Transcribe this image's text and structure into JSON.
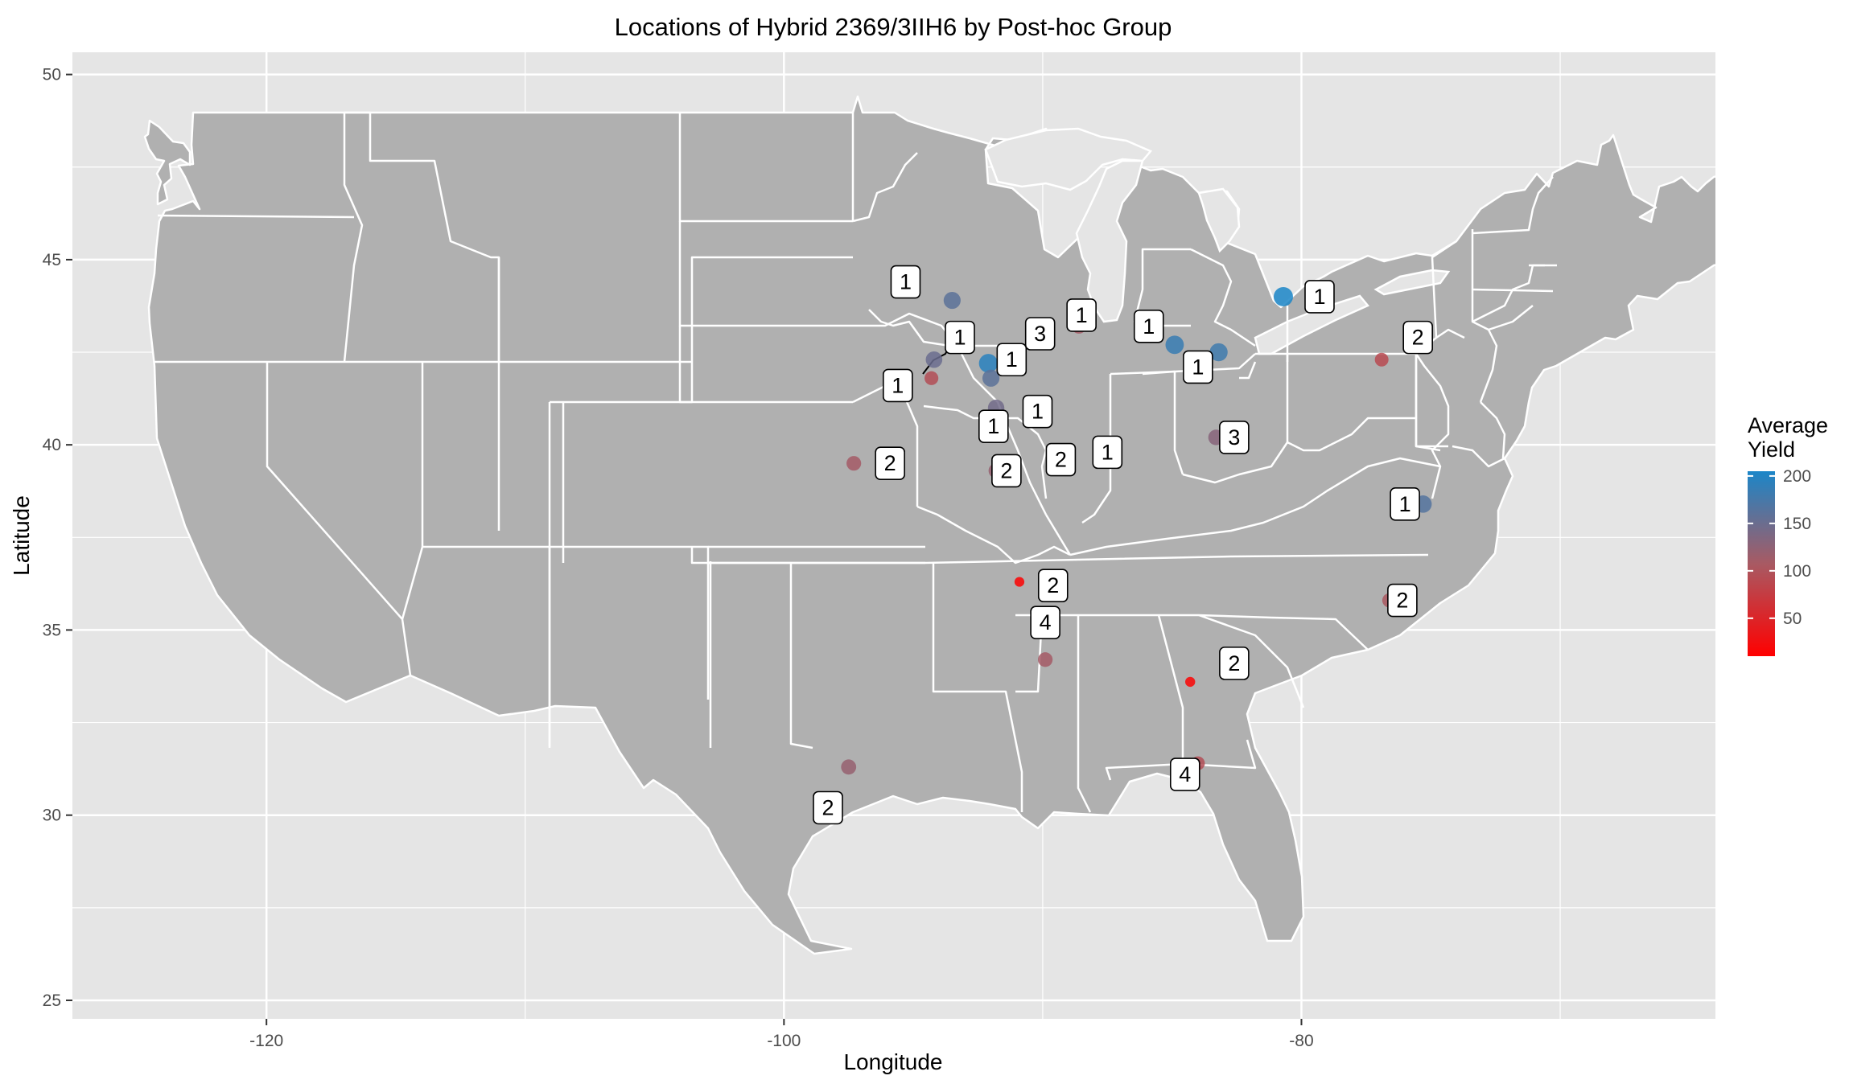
{
  "title": "Locations of Hybrid 2369/3IIH6 by Post-hoc Group",
  "xlabel": "Longitude",
  "ylabel": "Latitude",
  "legend": {
    "title_line1": "Average",
    "title_line2": "Yield",
    "ticks": [
      "200",
      "150",
      "100",
      "50"
    ],
    "tick_values": [
      200,
      150,
      100,
      50
    ],
    "range": [
      10,
      205
    ],
    "colors": {
      "high": "#1b86c8",
      "mid": "#a85a63",
      "low": "#ff0000"
    }
  },
  "colors": {
    "panel_bg": "#e5e5e5",
    "grid": "#ffffff",
    "state_fill": "#b0b0b0",
    "state_border": "#ffffff"
  },
  "chart_data": {
    "type": "scatter",
    "title": "Locations of Hybrid 2369/3IIH6 by Post-hoc Group",
    "xlabel": "Longitude",
    "ylabel": "Latitude",
    "xlim": [
      -127.5,
      -64
    ],
    "ylim": [
      24.5,
      50.6
    ],
    "xticks": [
      -120,
      -100,
      -80
    ],
    "yticks": [
      25,
      30,
      35,
      40,
      45,
      50
    ],
    "grid": true,
    "legend_position": "right",
    "points": [
      {
        "lon": -93.5,
        "lat": 43.9,
        "yield": 160,
        "group": "1",
        "label_lon": -95.3,
        "label_lat": 44.4
      },
      {
        "lon": -94.2,
        "lat": 42.3,
        "yield": 150,
        "group": "1",
        "label_lon": -93.2,
        "label_lat": 42.9
      },
      {
        "lon": -94.3,
        "lat": 41.8,
        "yield": 95,
        "group": "1",
        "label_lon": -95.6,
        "label_lat": 41.6
      },
      {
        "lon": -92.1,
        "lat": 42.2,
        "yield": 195,
        "group": "1",
        "label_lon": -91.2,
        "label_lat": 42.3
      },
      {
        "lon": -92.0,
        "lat": 41.8,
        "yield": 160,
        "group": "3",
        "label_lon": -90.1,
        "label_lat": 43.0
      },
      {
        "lon": -88.6,
        "lat": 43.2,
        "yield": 110,
        "group": "1",
        "label_lon": -88.5,
        "label_lat": 43.5
      },
      {
        "lon": -91.8,
        "lat": 41.0,
        "yield": 145,
        "group": "1",
        "label_lon": -91.9,
        "label_lat": 40.5
      },
      {
        "lon": -90.2,
        "lat": 41.0,
        "yield": 130,
        "group": "1",
        "label_lon": -90.2,
        "label_lat": 40.9
      },
      {
        "lon": -91.8,
        "lat": 39.3,
        "yield": 120,
        "group": "2",
        "label_lon": -91.4,
        "label_lat": 39.3
      },
      {
        "lon": -89.3,
        "lat": 39.6,
        "yield": 120,
        "group": "2",
        "label_lon": -89.3,
        "label_lat": 39.6
      },
      {
        "lon": -87.3,
        "lat": 39.8,
        "yield": 140,
        "group": "1",
        "label_lon": -87.5,
        "label_lat": 39.8
      },
      {
        "lon": -97.3,
        "lat": 39.5,
        "yield": 110,
        "group": "2",
        "label_lon": -95.9,
        "label_lat": 39.5
      },
      {
        "lon": -84.9,
        "lat": 42.7,
        "yield": 185,
        "group": "1",
        "label_lon": -85.9,
        "label_lat": 43.2
      },
      {
        "lon": -83.2,
        "lat": 42.5,
        "yield": 180,
        "group": "1",
        "label_lon": -84.0,
        "label_lat": 42.1
      },
      {
        "lon": -83.3,
        "lat": 40.2,
        "yield": 130,
        "group": "3",
        "label_lon": -82.6,
        "label_lat": 40.2
      },
      {
        "lon": -80.7,
        "lat": 44.0,
        "yield": 205,
        "group": "1",
        "label_lon": -79.3,
        "label_lat": 44.0
      },
      {
        "lon": -76.9,
        "lat": 42.3,
        "yield": 90,
        "group": "2",
        "label_lon": -75.5,
        "label_lat": 42.9
      },
      {
        "lon": -75.3,
        "lat": 38.4,
        "yield": 165,
        "group": "1",
        "label_lon": -76.0,
        "label_lat": 38.4
      },
      {
        "lon": -90.9,
        "lat": 36.3,
        "yield": 12,
        "group": "2",
        "label_lon": -89.6,
        "label_lat": 36.2
      },
      {
        "lon": -89.9,
        "lat": 34.2,
        "yield": 110,
        "group": "4",
        "label_lon": -89.9,
        "label_lat": 35.2
      },
      {
        "lon": -76.6,
        "lat": 35.8,
        "yield": 105,
        "group": "2",
        "label_lon": -76.1,
        "label_lat": 35.8
      },
      {
        "lon": -84.3,
        "lat": 33.6,
        "yield": 15,
        "group": "2",
        "label_lon": -82.6,
        "label_lat": 34.1
      },
      {
        "lon": -84.0,
        "lat": 31.4,
        "yield": 95,
        "group": "4",
        "label_lon": -84.5,
        "label_lat": 31.1
      },
      {
        "lon": -97.5,
        "lat": 31.3,
        "yield": 120,
        "group": "2",
        "label_lon": -98.3,
        "label_lat": 30.2
      }
    ]
  }
}
